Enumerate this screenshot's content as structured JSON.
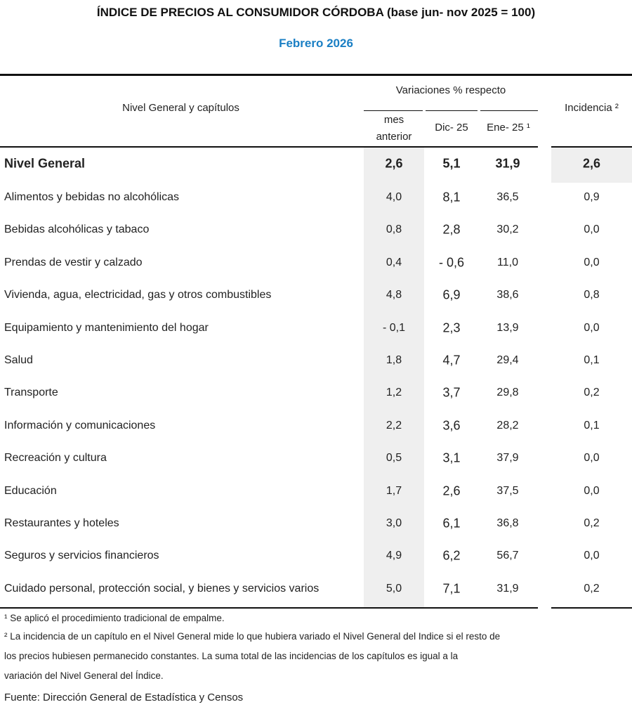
{
  "title": "ÍNDICE DE PRECIOS AL CONSUMIDOR CÓRDOBA (base jun- nov 2025 = 100)",
  "subtitle": "Febrero 2026",
  "accent_color": "#1a7fc4",
  "header": {
    "col_label": "Nivel General y capítulos",
    "group_label": "Variaciones % respecto",
    "sub1_line1": "mes",
    "sub1_line2": "anterior",
    "sub2": "Dic- 25",
    "sub3": "Ene- 25 ¹",
    "incidencia": "Incidencia ²"
  },
  "rows": [
    {
      "label": "Nivel General",
      "mes": "2,6",
      "dic": "5,1",
      "ene": "31,9",
      "inc": "2,6"
    },
    {
      "label": "Alimentos y bebidas no alcohólicas",
      "mes": "4,0",
      "dic": "8,1",
      "ene": "36,5",
      "inc": "0,9"
    },
    {
      "label": "Bebidas alcohólicas y tabaco",
      "mes": "0,8",
      "dic": "2,8",
      "ene": "30,2",
      "inc": "0,0"
    },
    {
      "label": "Prendas de vestir y calzado",
      "mes": "0,4",
      "dic": "- 0,6",
      "ene": "11,0",
      "inc": "0,0"
    },
    {
      "label": "Vivienda, agua, electricidad, gas y otros combustibles",
      "mes": "4,8",
      "dic": "6,9",
      "ene": "38,6",
      "inc": "0,8"
    },
    {
      "label": "Equipamiento y mantenimiento del hogar",
      "mes": "- 0,1",
      "dic": "2,3",
      "ene": "13,9",
      "inc": "0,0"
    },
    {
      "label": "Salud",
      "mes": "1,8",
      "dic": "4,7",
      "ene": "29,4",
      "inc": "0,1"
    },
    {
      "label": "Transporte",
      "mes": "1,2",
      "dic": "3,7",
      "ene": "29,8",
      "inc": "0,2"
    },
    {
      "label": "Información y comunicaciones",
      "mes": "2,2",
      "dic": "3,6",
      "ene": "28,2",
      "inc": "0,1"
    },
    {
      "label": "Recreación y cultura",
      "mes": "0,5",
      "dic": "3,1",
      "ene": "37,9",
      "inc": "0,0"
    },
    {
      "label": "Educación",
      "mes": "1,7",
      "dic": "2,6",
      "ene": "37,5",
      "inc": "0,0"
    },
    {
      "label": "Restaurantes y hoteles",
      "mes": "3,0",
      "dic": "6,1",
      "ene": "36,8",
      "inc": "0,2"
    },
    {
      "label": "Seguros y servicios financieros",
      "mes": "4,9",
      "dic": "6,2",
      "ene": "56,7",
      "inc": "0,0"
    },
    {
      "label": "Cuidado personal, protección social, y bienes y servicios varios",
      "mes": "5,0",
      "dic": "7,1",
      "ene": "31,9",
      "inc": "0,2"
    }
  ],
  "notes": {
    "n1": "¹ Se aplicó el procedimiento tradicional de empalme.",
    "n2a": "² La incidencia de un capítulo en el Nivel General mide lo que hubiera variado el Nivel General del Indice si el resto de",
    "n2b": "los precios hubiesen permanecido constantes. La suma total de las incidencias de los capítulos es igual a la",
    "n2c": "variación del Nivel General del Índice.",
    "source": "Fuente: Dirección General de Estadística y Censos"
  }
}
